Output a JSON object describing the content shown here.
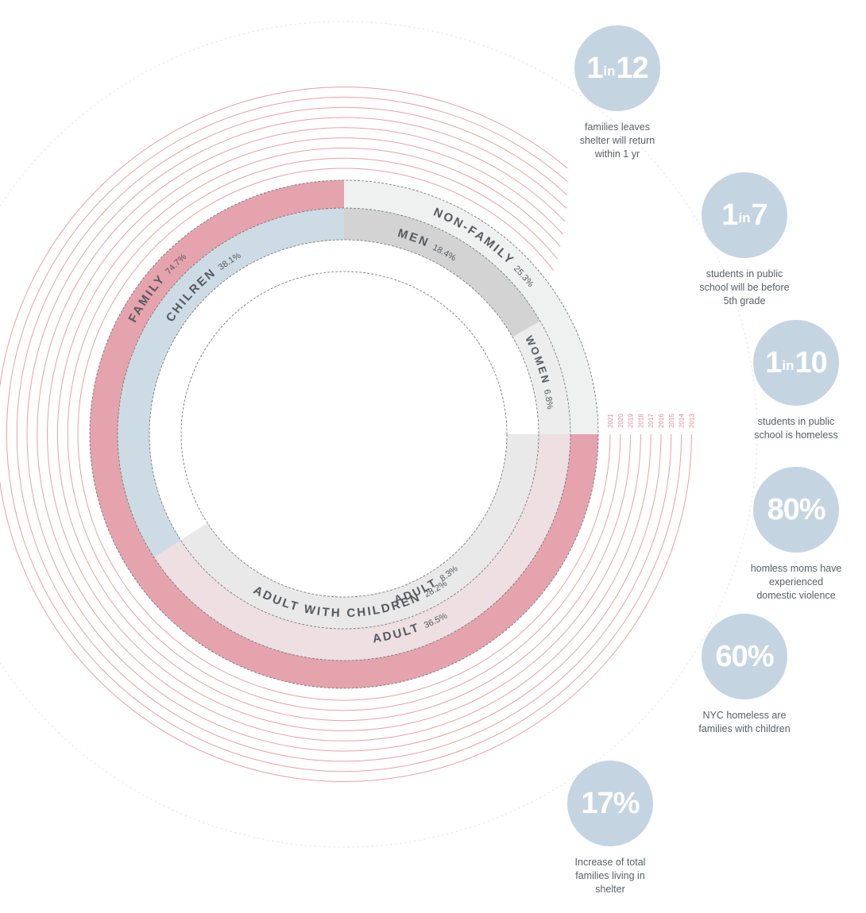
{
  "chart_data": {
    "type": "pie",
    "title": "",
    "rings": {
      "outer": [
        {
          "label": "FAMILY",
          "pct_label": "74.7%",
          "value": 74.7,
          "color": "#e5a3ad"
        },
        {
          "label": "NON-FAMILY",
          "pct_label": "25.3%",
          "value": 25.3,
          "color": "#eff1f0"
        }
      ],
      "inner": [
        {
          "label": "CHILREN",
          "pct_label": "38.1%",
          "value": 38.1,
          "color": "#cddbe4"
        },
        {
          "label": "ADULT",
          "pct_label": "36.5%",
          "value": 36.5,
          "color": "#eddfe2"
        },
        {
          "label": "ADULT",
          "pct_label": "8.3%",
          "value": 8.3,
          "color": "#e8e9e9"
        },
        {
          "label": "MEN",
          "pct_label": "18.4%",
          "value": 18.4,
          "color": "#d3d3d3"
        },
        {
          "label": "WOMEN",
          "pct_label": "6.8%",
          "value": 6.8,
          "color": "#ecedec"
        }
      ],
      "sub_label": {
        "label": "ADULT WITH CHILDREN",
        "pct_label": "28.2%",
        "value": 28.2
      }
    },
    "years": [
      "2021",
      "2020",
      "2019",
      "2018",
      "2017",
      "2016",
      "2015",
      "2014",
      "2013"
    ],
    "arc_color": "#e8a0aa"
  },
  "stats": [
    {
      "pre": "1",
      "mid": "in",
      "post": "12",
      "caption": [
        "families leaves",
        "shelter will return",
        "within 1 yr"
      ]
    },
    {
      "pre": "1",
      "mid": "in",
      "post": "7",
      "caption": [
        "students in public",
        "school will be before",
        "5th grade"
      ]
    },
    {
      "pre": "1",
      "mid": "in",
      "post": "10",
      "caption": [
        "students in public",
        "school is homeless"
      ]
    },
    {
      "pre": "80%",
      "mid": "",
      "post": "",
      "caption": [
        "homless moms have",
        "experienced",
        "domestic violence"
      ]
    },
    {
      "pre": "60%",
      "mid": "",
      "post": "",
      "caption": [
        "NYC homeless are",
        "families with children"
      ]
    },
    {
      "pre": "17%",
      "mid": "",
      "post": "",
      "caption": [
        "Increase of total",
        "families living in",
        "shelter"
      ]
    }
  ]
}
